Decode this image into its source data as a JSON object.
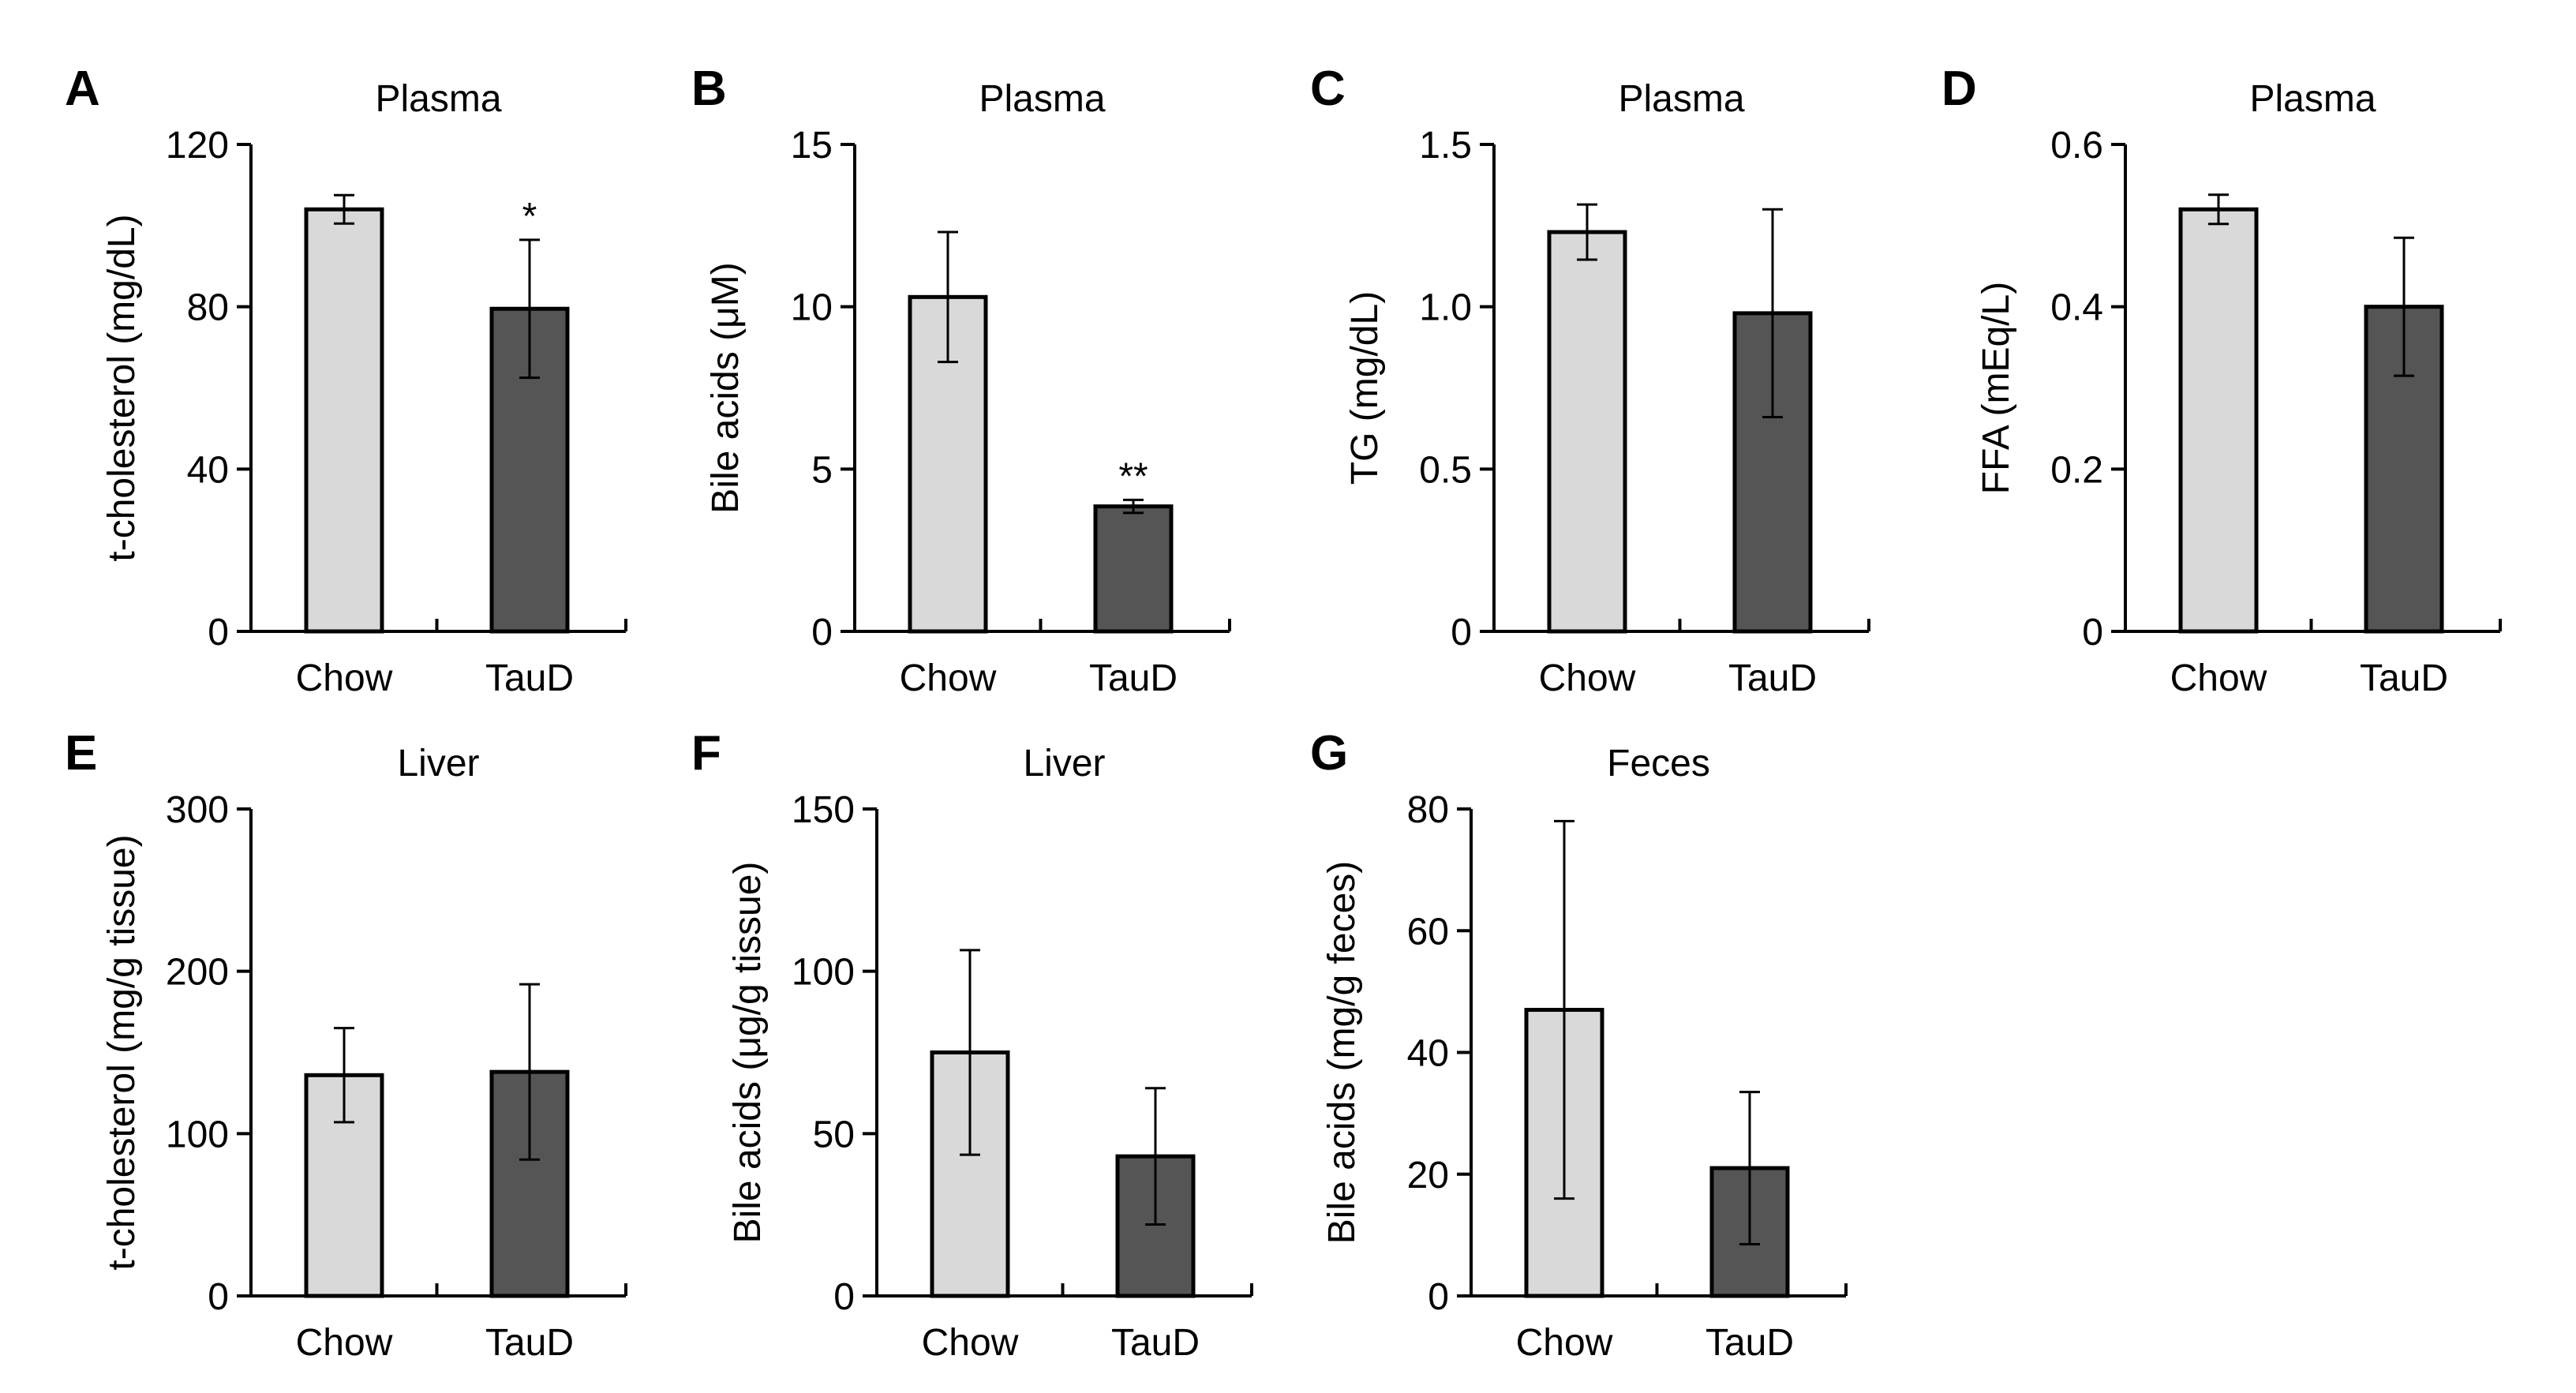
{
  "colors": {
    "chow_fill": "#d9d9d9",
    "taud_fill": "#555555",
    "stroke": "#000000"
  },
  "chart_data": [
    {
      "id": "A",
      "type": "bar",
      "title": "Plasma",
      "ylabel": "t-cholesterol (mg/dL)",
      "categories": [
        "Chow",
        "TauD"
      ],
      "values": [
        104,
        79.5
      ],
      "errors": [
        3.5,
        17
      ],
      "ylim": [
        0,
        120
      ],
      "yticks": [
        0,
        40,
        80,
        120
      ],
      "ytick_labels": [
        "0",
        "40",
        "80",
        "120"
      ],
      "significance": [
        "",
        "*"
      ]
    },
    {
      "id": "B",
      "type": "bar",
      "title": "Plasma",
      "ylabel": "Bile acids (μM)",
      "categories": [
        "Chow",
        "TauD"
      ],
      "values": [
        10.3,
        3.85
      ],
      "errors": [
        2.0,
        0.2
      ],
      "ylim": [
        0,
        15
      ],
      "yticks": [
        0,
        5,
        10,
        15
      ],
      "ytick_labels": [
        "0",
        "5",
        "10",
        "15"
      ],
      "significance": [
        "",
        "**"
      ]
    },
    {
      "id": "C",
      "type": "bar",
      "title": "Plasma",
      "ylabel": "TG (mg/dL)",
      "categories": [
        "Chow",
        "TauD"
      ],
      "values": [
        1.23,
        0.98
      ],
      "errors": [
        0.085,
        0.32
      ],
      "ylim": [
        0,
        1.5
      ],
      "yticks": [
        0,
        0.5,
        1.0,
        1.5
      ],
      "ytick_labels": [
        "0",
        "0.5",
        "1.0",
        "1.5"
      ],
      "significance": [
        "",
        ""
      ]
    },
    {
      "id": "D",
      "type": "bar",
      "title": "Plasma",
      "ylabel": "FFA (mEq/L)",
      "categories": [
        "Chow",
        "TauD"
      ],
      "values": [
        0.52,
        0.4
      ],
      "errors": [
        0.018,
        0.085
      ],
      "ylim": [
        0,
        0.6
      ],
      "yticks": [
        0,
        0.2,
        0.4,
        0.6
      ],
      "ytick_labels": [
        "0",
        "0.2",
        "0.4",
        "0.6"
      ],
      "significance": [
        "",
        ""
      ]
    },
    {
      "id": "E",
      "type": "bar",
      "title": "Liver",
      "ylabel": "t-cholesterol (mg/g tissue)",
      "categories": [
        "Chow",
        "TauD"
      ],
      "values": [
        136,
        138
      ],
      "errors": [
        29,
        54
      ],
      "ylim": [
        0,
        300
      ],
      "yticks": [
        0,
        100,
        200,
        300
      ],
      "ytick_labels": [
        "0",
        "100",
        "200",
        "300"
      ],
      "significance": [
        "",
        ""
      ]
    },
    {
      "id": "F",
      "type": "bar",
      "title": "Liver",
      "ylabel": "Bile acids (μg/g tissue)",
      "categories": [
        "Chow",
        "TauD"
      ],
      "values": [
        75,
        43
      ],
      "errors": [
        31.5,
        21
      ],
      "ylim": [
        0,
        150
      ],
      "yticks": [
        0,
        50,
        100,
        150
      ],
      "ytick_labels": [
        "0",
        "50",
        "100",
        "150"
      ],
      "significance": [
        "",
        ""
      ]
    },
    {
      "id": "G",
      "type": "bar",
      "title": "Feces",
      "ylabel": "Bile acids (mg/g feces)",
      "categories": [
        "Chow",
        "TauD"
      ],
      "values": [
        47,
        21
      ],
      "errors": [
        31,
        12.5
      ],
      "ylim": [
        0,
        80
      ],
      "yticks": [
        0,
        20,
        40,
        60,
        80
      ],
      "ytick_labels": [
        "0",
        "20",
        "40",
        "60",
        "80"
      ],
      "significance": [
        "",
        ""
      ]
    }
  ]
}
